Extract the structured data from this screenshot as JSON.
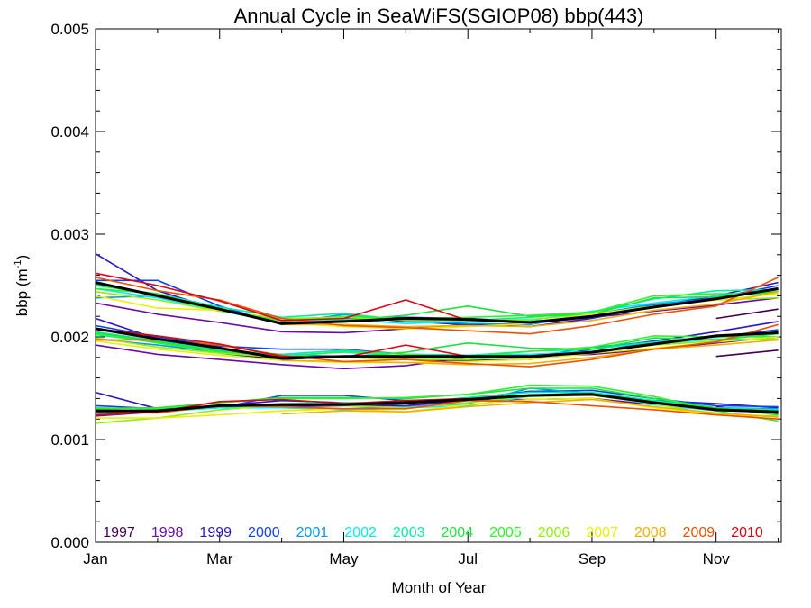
{
  "chart_data": {
    "type": "line",
    "title": "Annual Cycle in SeaWiFS(SGIOP08) bbp(443)",
    "xlabel": "Month of Year",
    "ylabel_base": "bbp (m",
    "ylabel_sup": "-1",
    "ylabel_close": ")",
    "xlim": [
      1,
      12.05
    ],
    "ylim": [
      0,
      0.005
    ],
    "x_ticks": [
      {
        "v": 1,
        "label": "Jan"
      },
      {
        "v": 3,
        "label": "Mar"
      },
      {
        "v": 5,
        "label": "May"
      },
      {
        "v": 7,
        "label": "Jul"
      },
      {
        "v": 9,
        "label": "Sep"
      },
      {
        "v": 11,
        "label": "Nov"
      }
    ],
    "y_ticks": [
      {
        "v": 0.0,
        "label": "0.000"
      },
      {
        "v": 0.001,
        "label": "0.001"
      },
      {
        "v": 0.002,
        "label": "0.002"
      },
      {
        "v": 0.003,
        "label": "0.003"
      },
      {
        "v": 0.004,
        "label": "0.004"
      },
      {
        "v": 0.005,
        "label": "0.005"
      }
    ],
    "x": [
      1,
      2,
      3,
      4,
      5,
      6,
      7,
      8,
      9,
      10,
      11,
      12
    ],
    "legend_position": "bottom",
    "series": [
      {
        "name": "1997",
        "color": "#44004f",
        "groups": [
          [
            null,
            null,
            null,
            null,
            null,
            null,
            null,
            null,
            null,
            null,
            0.00218,
            0.00227
          ],
          [
            null,
            null,
            null,
            null,
            null,
            null,
            null,
            null,
            null,
            null,
            0.00181,
            0.00187
          ],
          [
            null,
            null,
            null,
            null,
            null,
            null,
            null,
            null,
            null,
            null,
            0.00132,
            0.00125
          ]
        ]
      },
      {
        "name": "1998",
        "color": "#6a0aa8",
        "groups": [
          [
            0.00233,
            0.00222,
            0.00214,
            0.00205,
            0.00204,
            0.00208,
            0.00212,
            0.00213,
            0.00219,
            0.00225,
            0.00231,
            0.00238
          ],
          [
            0.00192,
            0.00183,
            0.00178,
            0.00173,
            0.00169,
            0.00172,
            0.0018,
            0.00181,
            0.00183,
            0.00188,
            0.00194,
            0.002
          ],
          [
            0.00123,
            0.00127,
            0.00132,
            0.00132,
            0.00133,
            0.00133,
            0.00138,
            0.00139,
            0.0014,
            0.00134,
            0.0013,
            0.00128
          ]
        ]
      },
      {
        "name": "1999",
        "color": "#2a16c8",
        "groups": [
          [
            0.00281,
            0.00245,
            0.00226,
            0.00215,
            0.0022,
            0.00215,
            0.00212,
            0.0021,
            0.00218,
            0.0023,
            0.0024,
            0.00253
          ],
          [
            0.00218,
            0.00198,
            0.00184,
            0.00178,
            0.00181,
            0.00178,
            0.00177,
            0.00178,
            0.00188,
            0.00196,
            0.00205,
            0.00215
          ],
          [
            0.00146,
            0.0013,
            0.00133,
            0.00138,
            0.00136,
            0.00133,
            0.0014,
            0.00147,
            0.00145,
            0.00138,
            0.00135,
            0.00131
          ]
        ]
      },
      {
        "name": "2000",
        "color": "#1040f0",
        "groups": [
          [
            0.00255,
            0.00255,
            0.0023,
            0.00212,
            0.00218,
            0.00219,
            0.00218,
            0.00215,
            0.00219,
            0.00231,
            0.00238,
            0.0025
          ],
          [
            0.00211,
            0.002,
            0.00191,
            0.00188,
            0.00188,
            0.00183,
            0.00182,
            0.0018,
            0.00185,
            0.00195,
            0.002,
            0.00207
          ],
          [
            0.00133,
            0.0013,
            0.00131,
            0.00143,
            0.00143,
            0.00138,
            0.00139,
            0.00147,
            0.00148,
            0.0014,
            0.00133,
            0.00132
          ]
        ]
      },
      {
        "name": "2001",
        "color": "#0098f0",
        "groups": [
          [
            0.00238,
            0.0024,
            0.00227,
            0.00213,
            0.00222,
            0.00216,
            0.00213,
            0.00212,
            0.00222,
            0.00232,
            0.00237,
            0.00246
          ],
          [
            0.00198,
            0.00192,
            0.00185,
            0.00183,
            0.00181,
            0.0018,
            0.0018,
            0.0018,
            0.0019,
            0.00195,
            0.002,
            0.00204
          ],
          [
            0.00128,
            0.00128,
            0.00132,
            0.00132,
            0.0013,
            0.00132,
            0.00135,
            0.0015,
            0.00145,
            0.00137,
            0.00131,
            0.0013
          ]
        ]
      },
      {
        "name": "2002",
        "color": "#00ecf0",
        "groups": [
          [
            0.00247,
            0.00238,
            0.00225,
            0.00215,
            0.00217,
            0.00213,
            0.00215,
            0.00216,
            0.00225,
            0.00233,
            0.0024,
            0.00244
          ],
          [
            0.00202,
            0.00195,
            0.00188,
            0.00182,
            0.00185,
            0.00181,
            0.00182,
            0.00183,
            0.00186,
            0.00193,
            0.00198,
            0.00197
          ],
          [
            0.00125,
            0.00127,
            0.00131,
            0.00131,
            0.00129,
            0.00131,
            0.00133,
            0.00142,
            0.00144,
            0.00134,
            0.00128,
            0.00128
          ]
        ]
      },
      {
        "name": "2003",
        "color": "#00f0a0",
        "groups": [
          [
            0.0025,
            0.00242,
            0.00229,
            0.00219,
            0.00223,
            0.00216,
            0.00216,
            0.00219,
            0.00224,
            0.00237,
            0.00245,
            0.00246
          ],
          [
            0.00205,
            0.00196,
            0.00187,
            0.00183,
            0.00187,
            0.00183,
            0.00182,
            0.00186,
            0.00188,
            0.00195,
            0.00201,
            0.002
          ],
          [
            0.0013,
            0.00131,
            0.00132,
            0.00135,
            0.00136,
            0.00136,
            0.00141,
            0.00146,
            0.00146,
            0.00138,
            0.00131,
            0.00129
          ]
        ]
      },
      {
        "name": "2004",
        "color": "#20e040",
        "groups": [
          [
            0.00251,
            0.0024,
            0.00226,
            0.00214,
            0.00216,
            0.00221,
            0.0023,
            0.0022,
            0.00222,
            0.00238,
            0.00239,
            0.00244
          ],
          [
            0.00204,
            0.00195,
            0.00186,
            0.0018,
            0.0018,
            0.00185,
            0.00194,
            0.00189,
            0.00188,
            0.00199,
            0.00197,
            0.00203
          ],
          [
            0.0013,
            0.00131,
            0.00136,
            0.00141,
            0.00141,
            0.0014,
            0.00144,
            0.0015,
            0.0015,
            0.0014,
            0.00131,
            0.00124
          ]
        ]
      },
      {
        "name": "2005",
        "color": "#30f030",
        "groups": [
          [
            0.00247,
            0.00242,
            0.00226,
            0.00216,
            0.0022,
            0.00218,
            0.00219,
            0.00221,
            0.00224,
            0.0024,
            0.00242,
            0.00242
          ],
          [
            0.00203,
            0.00194,
            0.00185,
            0.0018,
            0.00186,
            0.00183,
            0.0018,
            0.00186,
            0.0019,
            0.00201,
            0.002,
            0.002
          ],
          [
            0.00131,
            0.0013,
            0.00136,
            0.0014,
            0.0014,
            0.00141,
            0.00144,
            0.00153,
            0.00152,
            0.00142,
            0.00128,
            0.00118
          ]
        ]
      },
      {
        "name": "2006",
        "color": "#90ee10",
        "groups": [
          [
            0.00244,
            0.00236,
            0.00225,
            0.00218,
            0.00219,
            0.00216,
            0.00216,
            0.00217,
            0.00222,
            0.0023,
            0.00236,
            0.00238
          ],
          [
            0.00199,
            0.0019,
            0.00184,
            0.0018,
            0.0018,
            0.00178,
            0.00178,
            0.00181,
            0.00185,
            0.00192,
            0.00196,
            0.00198
          ],
          [
            0.00116,
            0.00121,
            0.00129,
            0.00134,
            0.00133,
            0.00131,
            0.00136,
            0.00142,
            0.00143,
            0.00135,
            0.00124,
            0.00123
          ]
        ]
      },
      {
        "name": "2007",
        "color": "#e8f000",
        "groups": [
          [
            0.0024,
            0.00228,
            0.00226,
            0.00214,
            0.0021,
            0.00208,
            0.0021,
            0.00213,
            0.00222,
            0.0023,
            0.00236,
            0.00242
          ],
          [
            0.00196,
            0.00188,
            0.00182,
            0.00177,
            0.00175,
            0.00175,
            0.00176,
            0.00178,
            0.00184,
            0.00189,
            0.00195,
            0.002
          ],
          [
            0.00121,
            0.00121,
            0.00124,
            0.00128,
            0.0013,
            0.00127,
            0.00134,
            0.00139,
            0.0014,
            0.00131,
            0.00125,
            0.00122
          ]
        ]
      },
      {
        "name": "2008",
        "color": "#f0b000",
        "groups": [
          [
            null,
            null,
            null,
            0.00212,
            0.00212,
            0.0021,
            0.00211,
            0.0021,
            0.00216,
            0.00226,
            0.00232,
            0.00244
          ],
          [
            null,
            null,
            null,
            0.00177,
            0.00176,
            0.00175,
            0.00173,
            0.00174,
            0.0018,
            0.00188,
            0.00192,
            0.00197
          ],
          [
            null,
            null,
            null,
            0.00125,
            0.00128,
            0.00127,
            0.00132,
            0.00136,
            0.00139,
            0.00132,
            0.00126,
            0.00122
          ]
        ]
      },
      {
        "name": "2009",
        "color": "#f05000",
        "groups": [
          [
            0.00258,
            0.00245,
            0.00236,
            0.00218,
            0.00211,
            0.00209,
            0.00206,
            0.00203,
            0.00211,
            0.00222,
            0.0023,
            0.00258
          ],
          [
            0.00197,
            0.00197,
            0.00192,
            0.00182,
            0.00176,
            0.00178,
            0.00174,
            0.00171,
            0.00178,
            0.00188,
            0.00195,
            0.00212
          ],
          [
            0.00127,
            0.00126,
            0.00133,
            0.00132,
            0.0013,
            0.0013,
            0.00138,
            0.00137,
            0.00133,
            0.00129,
            0.00124,
            0.0012
          ]
        ]
      },
      {
        "name": "2010",
        "color": "#e00010",
        "groups": [
          [
            0.00262,
            0.0025,
            0.00235,
            0.00216,
            0.00218,
            0.00236,
            0.00216,
            null,
            null,
            null,
            null,
            null
          ],
          [
            0.00208,
            0.00201,
            0.00193,
            0.00181,
            0.0018,
            0.00192,
            0.00181,
            null,
            null,
            null,
            null,
            null
          ],
          [
            0.00124,
            0.00127,
            0.00137,
            0.00139,
            0.00135,
            0.00138,
            0.0014,
            null,
            null,
            null,
            null,
            null
          ]
        ]
      }
    ],
    "mean": {
      "color": "#000000",
      "groups": [
        [
          0.00253,
          0.0024,
          0.00227,
          0.00213,
          0.00215,
          0.00218,
          0.00217,
          0.00214,
          0.0022,
          0.00229,
          0.00237,
          0.00247
        ],
        [
          0.00208,
          0.00198,
          0.00189,
          0.00179,
          0.00181,
          0.00181,
          0.00181,
          0.00181,
          0.00185,
          0.00193,
          0.00201,
          0.00204
        ],
        [
          0.00128,
          0.00128,
          0.00133,
          0.00134,
          0.00134,
          0.00136,
          0.00139,
          0.00143,
          0.00144,
          0.00136,
          0.00129,
          0.00127
        ]
      ]
    }
  }
}
